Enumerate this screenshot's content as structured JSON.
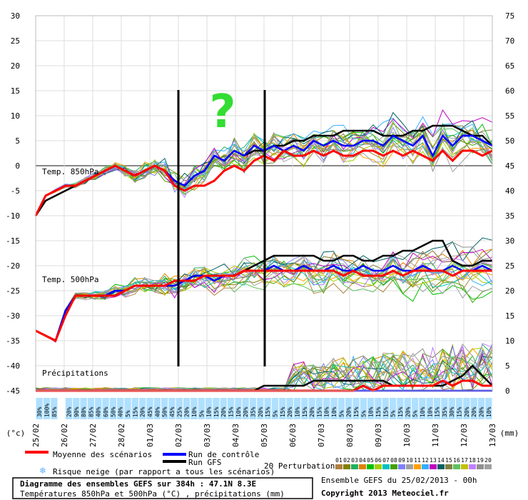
{
  "chart_data": {
    "type": "line",
    "title": "Diagramme des ensembles GEFS sur 384h : 47.1N 8.3E",
    "subtitle": "Températures 850hPa et 500hPa (°C) , précipitations (mm)",
    "left_axis_unit": "(°c)",
    "right_axis_unit": "(mm)",
    "left_ticks": [
      30,
      25,
      20,
      15,
      10,
      5,
      0,
      -5,
      -10,
      -15,
      -20,
      -25,
      -30,
      -35,
      -40,
      -45
    ],
    "right_ticks": [
      75,
      70,
      65,
      60,
      55,
      50,
      45,
      40,
      35,
      30,
      25,
      20,
      15,
      10,
      5,
      0
    ],
    "ylim": [
      -45,
      30
    ],
    "dates": [
      "25/02",
      "26/02",
      "27/02",
      "28/02",
      "01/03",
      "02/03",
      "03/03",
      "04/03",
      "05/03",
      "06/03",
      "07/03",
      "08/03",
      "09/03",
      "10/03",
      "11/03",
      "12/03",
      "13/03"
    ],
    "panel_labels": {
      "t850": "Temp. 850hPa",
      "t500": "Temp. 500hPa",
      "precip": "Précipitations"
    },
    "question_mark": "?",
    "snow_risk_pct": [
      "30%",
      "100%",
      "85%",
      "",
      "20%",
      "90%",
      "80%",
      "85%",
      "40%",
      "60%",
      "50%",
      "40%",
      "5%",
      "15%",
      "20%",
      "45%",
      "40%",
      "50%",
      "45%",
      "25%",
      "20%",
      "10%",
      "5%",
      "10%",
      "15%",
      "20%",
      "15%",
      "10%",
      "20%",
      "35%",
      "20%",
      "15%",
      "5%",
      "15%",
      "20%",
      "10%",
      "15%",
      "20%",
      "15%",
      "10%",
      "10%",
      "5%",
      "20%",
      "15%",
      "5%",
      "10%",
      "15%",
      "15%",
      "5%",
      "15%",
      "20%",
      "5%",
      "10%",
      "10%",
      "15%",
      "35%",
      "30%",
      "15%",
      "20%",
      "20%",
      "20%",
      "10%"
    ],
    "series": [
      {
        "name": "Moyenne des scénarios",
        "t850": [
          -10,
          -6,
          -5,
          -4,
          -4,
          -3,
          -2,
          -1,
          0,
          -1,
          -2,
          -1,
          0,
          -1,
          -4,
          -5,
          -4,
          -4,
          -3,
          -1,
          0,
          -1,
          1,
          2,
          1,
          3,
          2,
          2,
          3,
          2,
          3,
          2,
          2,
          3,
          3,
          2,
          3,
          2,
          3,
          2,
          1,
          3,
          1,
          3,
          3,
          2,
          3
        ],
        "t500": [
          -33,
          -34,
          -35,
          -30,
          -26,
          -26,
          -26,
          -26,
          -26,
          -25,
          -24,
          -24,
          -24,
          -24,
          -23,
          -23,
          -23,
          -22,
          -22,
          -22,
          -22,
          -21,
          -21,
          -21,
          -21,
          -21,
          -21,
          -21,
          -21,
          -21,
          -21,
          -22,
          -21,
          -22,
          -22,
          -22,
          -21,
          -22,
          -21,
          -21,
          -21,
          -21,
          -22,
          -21,
          -21,
          -21,
          -21
        ],
        "precip": [
          0,
          0,
          0,
          0,
          0,
          0,
          0,
          0,
          0,
          0,
          0,
          0,
          0,
          0,
          0,
          0,
          0,
          0,
          0,
          0,
          0,
          0,
          0,
          0,
          0,
          0,
          0,
          0,
          0,
          0,
          0,
          0,
          0,
          1,
          0,
          1,
          1,
          1,
          1,
          1,
          1,
          2,
          1,
          2,
          2,
          1,
          1
        ]
      },
      {
        "name": "Run de contrôle",
        "t850": [
          -10,
          -6,
          -5,
          -4,
          -4,
          -3,
          -2,
          -1,
          0,
          -1,
          -2,
          -1,
          0,
          -1,
          -3,
          -4,
          -2,
          -1,
          2,
          1,
          3,
          2,
          4,
          3,
          4,
          3,
          4,
          3,
          5,
          4,
          5,
          4,
          4,
          5,
          5,
          4,
          6,
          5,
          4,
          6,
          2,
          6,
          4,
          6,
          6,
          5,
          4
        ],
        "t500": [
          -33,
          -34,
          -35,
          -29,
          -26,
          -26,
          -26,
          -26,
          -25,
          -25,
          -24,
          -24,
          -24,
          -24,
          -24,
          -23,
          -22,
          -22,
          -23,
          -22,
          -22,
          -21,
          -21,
          -21,
          -20,
          -21,
          -21,
          -20,
          -21,
          -21,
          -20,
          -21,
          -21,
          -20,
          -21,
          -21,
          -20,
          -21,
          -21,
          -20,
          -21,
          -21,
          -20,
          -21,
          -21,
          -20,
          -21
        ],
        "precip": [
          0,
          0,
          0,
          0,
          0,
          0,
          0,
          0,
          0,
          0,
          0,
          0,
          0,
          0,
          0,
          0,
          0,
          0,
          0,
          0,
          0,
          0,
          0,
          0,
          0,
          0,
          0,
          0,
          0,
          0,
          0,
          0,
          0,
          0,
          0,
          0,
          0,
          0,
          0,
          0,
          0,
          0,
          0,
          0,
          0,
          0,
          0
        ]
      },
      {
        "name": "Run GFS",
        "t850": [
          -10,
          -7,
          -6,
          -5,
          -4,
          -3,
          -2,
          -1,
          0,
          -1,
          -2,
          -1,
          0,
          -1,
          -3,
          -4,
          -2,
          -1,
          2,
          1,
          3,
          2,
          3,
          3,
          4,
          4,
          5,
          5,
          6,
          6,
          6,
          7,
          7,
          7,
          7,
          6,
          6,
          6,
          7,
          7,
          8,
          8,
          8,
          7,
          6,
          6,
          4
        ],
        "t500": [
          -33,
          -34,
          -35,
          -29,
          -26,
          -26,
          -26,
          -26,
          -25,
          -25,
          -24,
          -24,
          -24,
          -24,
          -24,
          -23,
          -22,
          -22,
          -23,
          -22,
          -22,
          -21,
          -20,
          -19,
          -18,
          -18,
          -18,
          -18,
          -18,
          -19,
          -19,
          -18,
          -18,
          -19,
          -19,
          -18,
          -18,
          -17,
          -17,
          -16,
          -15,
          -15,
          -19,
          -20,
          -20,
          -19,
          -19
        ],
        "precip": [
          0,
          0,
          0,
          0,
          0,
          0,
          0,
          0,
          0,
          0,
          0,
          0,
          0,
          0,
          0,
          0,
          0,
          0,
          0,
          0,
          0,
          0,
          0,
          1,
          1,
          1,
          1,
          1,
          2,
          2,
          2,
          2,
          2,
          2,
          2,
          2,
          1,
          1,
          1,
          1,
          1,
          1,
          2,
          3,
          5,
          3,
          1
        ]
      }
    ],
    "perturbations_label": "20 Perturbations",
    "perturbation_ids": [
      "01",
      "02",
      "03",
      "04",
      "05",
      "06",
      "07",
      "08",
      "09",
      "10",
      "11",
      "12",
      "13",
      "14",
      "15",
      "16",
      "17",
      "18",
      "19",
      "20"
    ],
    "perturbation_colors": [
      "#b08040",
      "#808000",
      "#20b060",
      "#e08000",
      "#00c000",
      "#a0d000",
      "#00c0c0",
      "#40a000",
      "#8080ff",
      "#a0a0a0",
      "#ffa000",
      "#30b0ff",
      "#c000c0",
      "#006060",
      "#808040",
      "#60c060",
      "#c0c000",
      "#c080ff",
      "#909090",
      "#a0a0a0"
    ],
    "legend": {
      "mean": "Moyenne des scénarios",
      "control": "Run de contrôle",
      "gfs": "Run GFS",
      "snow": "Risque neige (par rapport a tous les scénarios)",
      "ensemble": "Ensemble GEFS du 25/02/2013 - 00h",
      "copyright": "Copyright 2013 Meteociel.fr"
    },
    "colors": {
      "mean": "#ff0000",
      "control": "#0000ff",
      "gfs": "#000000",
      "snow": "#b0e0ff",
      "question": "#33dd33"
    }
  }
}
